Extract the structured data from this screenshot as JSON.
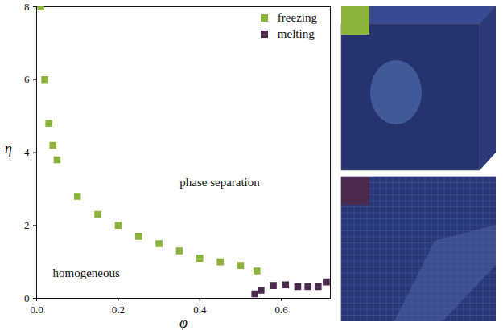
{
  "chart_data": {
    "type": "scatter",
    "x_label": "φ",
    "y_label": "η",
    "xlim": [
      0,
      0.72
    ],
    "ylim": [
      0,
      8
    ],
    "xticks": [
      {
        "value": 0,
        "label": "0.0"
      },
      0.2,
      0.4,
      0.6
    ],
    "yticks": [
      0,
      2,
      4,
      6,
      8
    ],
    "legend": "upper right",
    "annotations": [
      "phase separation",
      "homogeneous"
    ],
    "series": [
      {
        "name": "freezing",
        "color": "#8cb43c",
        "marker": "square",
        "x": [
          0.01,
          0.02,
          0.03,
          0.04,
          0.05,
          0.1,
          0.15,
          0.2,
          0.25,
          0.3,
          0.35,
          0.4,
          0.45,
          0.5,
          0.54
        ],
        "values": [
          8.0,
          6.0,
          4.8,
          4.2,
          3.8,
          2.8,
          2.3,
          2.0,
          1.7,
          1.5,
          1.3,
          1.1,
          1.0,
          0.9,
          0.75
        ]
      },
      {
        "name": "melting",
        "color": "#4b2a4e",
        "marker": "square",
        "x": [
          0.535,
          0.55,
          0.58,
          0.61,
          0.64,
          0.665,
          0.69,
          0.71
        ],
        "values": [
          0.12,
          0.22,
          0.35,
          0.37,
          0.32,
          0.32,
          0.32,
          0.45
        ]
      }
    ]
  }
}
